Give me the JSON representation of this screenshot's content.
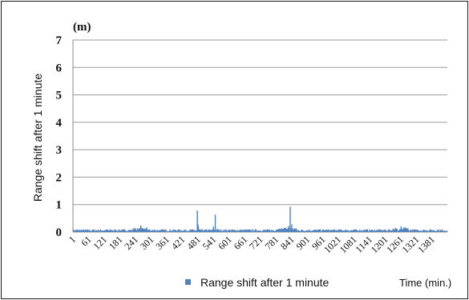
{
  "chart_data": {
    "type": "bar",
    "unit_label": "(m)",
    "ylabel": "Range shift after 1 minute",
    "xlabel": "Time (min.)",
    "ylim": [
      0,
      7
    ],
    "yticks": [
      "0",
      "1",
      "2",
      "3",
      "4",
      "5",
      "6",
      "7"
    ],
    "xlim": [
      1,
      1440
    ],
    "xticks": [
      1,
      61,
      121,
      181,
      241,
      301,
      361,
      421,
      481,
      541,
      601,
      661,
      721,
      781,
      841,
      901,
      961,
      1021,
      1081,
      1141,
      1201,
      1261,
      1321,
      1381
    ],
    "grid": true,
    "legend_position": "bottom",
    "series": [
      {
        "name": "Range shift after 1 minute",
        "color": "#4f81bd",
        "baseline_range": [
          0.02,
          0.1
        ],
        "spikes": [
          {
            "x": 479,
            "y": 0.78
          },
          {
            "x": 481,
            "y": 0.3
          },
          {
            "x": 483,
            "y": 0.22
          },
          {
            "x": 541,
            "y": 0.2
          },
          {
            "x": 548,
            "y": 0.63
          },
          {
            "x": 556,
            "y": 0.12
          },
          {
            "x": 830,
            "y": 0.22
          },
          {
            "x": 836,
            "y": 0.92
          },
          {
            "x": 842,
            "y": 0.28
          },
          {
            "x": 262,
            "y": 0.24
          },
          {
            "x": 1262,
            "y": 0.2
          }
        ]
      }
    ]
  }
}
